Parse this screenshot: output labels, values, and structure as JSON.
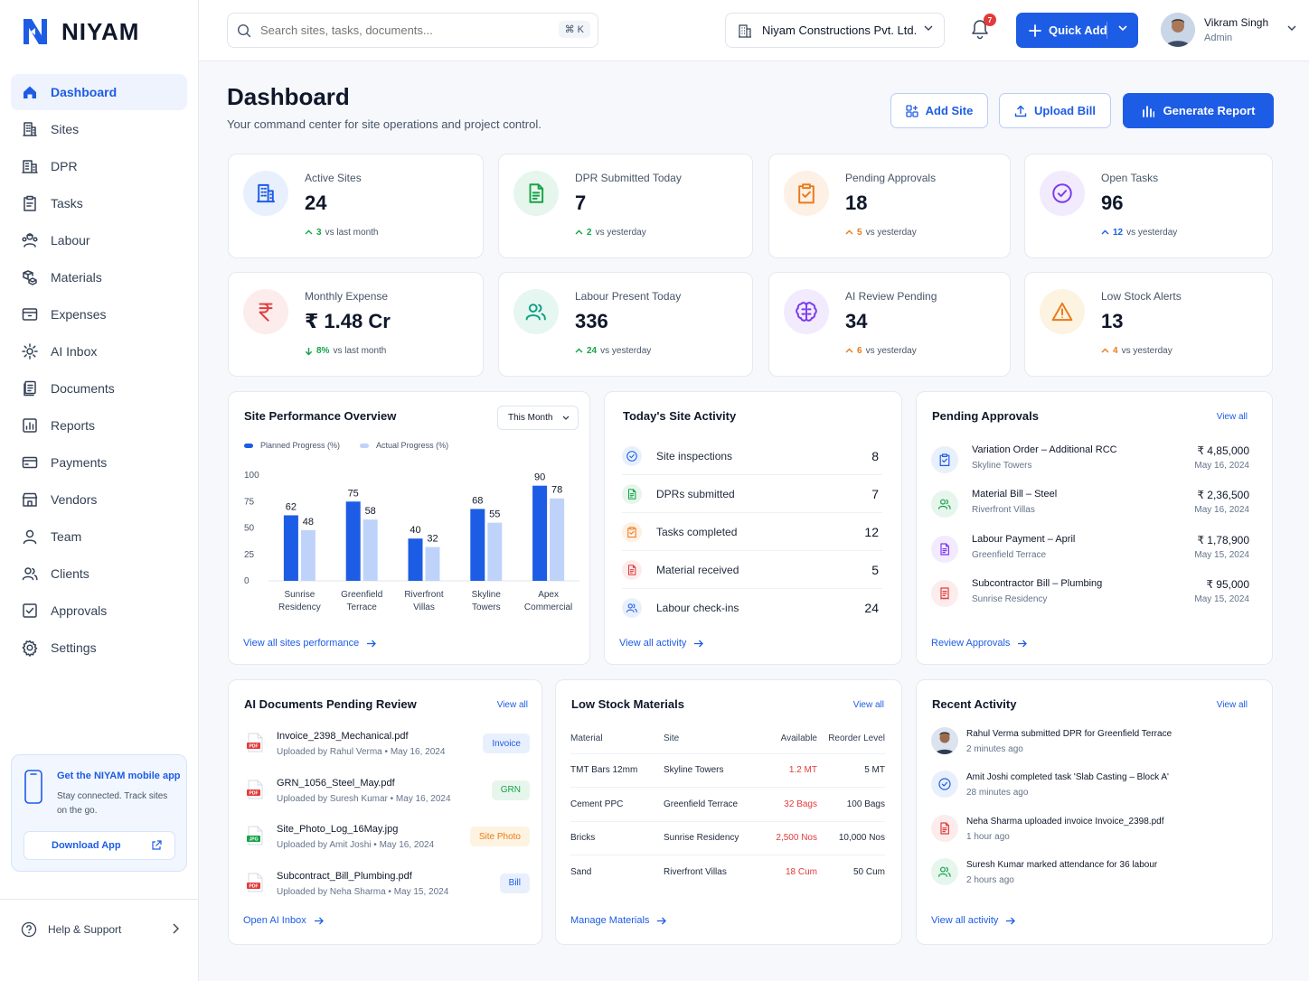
{
  "app": {
    "name": "NIYAM"
  },
  "sidebar": {
    "items": [
      {
        "label": "Dashboard",
        "icon": "home-icon",
        "active": true
      },
      {
        "label": "Sites",
        "icon": "building-icon"
      },
      {
        "label": "DPR",
        "icon": "dpr-icon"
      },
      {
        "label": "Tasks",
        "icon": "clipboard-icon"
      },
      {
        "label": "Labour",
        "icon": "labour-icon"
      },
      {
        "label": "Materials",
        "icon": "materials-icon"
      },
      {
        "label": "Expenses",
        "icon": "wallet-icon"
      },
      {
        "label": "AI Inbox",
        "icon": "ai-gear-icon"
      },
      {
        "label": "Documents",
        "icon": "documents-icon"
      },
      {
        "label": "Reports",
        "icon": "reports-icon"
      },
      {
        "label": "Payments",
        "icon": "card-icon"
      },
      {
        "label": "Vendors",
        "icon": "store-icon"
      },
      {
        "label": "Team",
        "icon": "user-icon"
      },
      {
        "label": "Clients",
        "icon": "clients-icon"
      },
      {
        "label": "Approvals",
        "icon": "check-square-icon"
      },
      {
        "label": "Settings",
        "icon": "gear-icon"
      }
    ],
    "promo": {
      "title": "Get the NIYAM mobile app",
      "text": "Stay connected. Track sites on the go.",
      "button": "Download App"
    },
    "help": "Help & Support"
  },
  "topbar": {
    "search_placeholder": "Search sites, tasks, documents...",
    "shortcut": "⌘ K",
    "company": "Niyam Constructions Pvt. Ltd.",
    "notifications": "7",
    "quick_add": "Quick Add",
    "user_name": "Vikram Singh",
    "user_role": "Admin"
  },
  "header": {
    "title": "Dashboard",
    "subtitle": "Your command center for site operations and project control.",
    "add_site": "Add Site",
    "upload_bill": "Upload Bill",
    "generate_report": "Generate Report"
  },
  "stats": [
    {
      "label": "Active Sites",
      "value": "24",
      "delta": "3",
      "note": "vs last month",
      "direction": "up",
      "color": "#16a34a",
      "bg": "#e8f0fd",
      "icon": "building-icon"
    },
    {
      "label": "DPR Submitted Today",
      "value": "7",
      "delta": "2",
      "note": "vs yesterday",
      "direction": "up",
      "color": "#16a34a",
      "bg": "#e7f6ec",
      "icon": "document-icon"
    },
    {
      "label": "Pending Approvals",
      "value": "18",
      "delta": "5",
      "note": "vs yesterday",
      "direction": "up",
      "color": "#ea7a1a",
      "bg": "#fdf0e4",
      "icon": "clipboard-check-icon"
    },
    {
      "label": "Open Tasks",
      "value": "96",
      "delta": "12",
      "note": "vs yesterday",
      "direction": "up",
      "color": "#1d5ce5",
      "bg": "#f1ebfd",
      "icon": "check-circle-icon"
    },
    {
      "label": "Monthly Expense",
      "value": "₹ 1.48 Cr",
      "delta": "8%",
      "note": "vs last month",
      "direction": "down",
      "color": "#16a34a",
      "bg": "#fdecec",
      "icon": "rupee-icon"
    },
    {
      "label": "Labour Present Today",
      "value": "336",
      "delta": "24",
      "note": "vs yesterday",
      "direction": "up",
      "color": "#16a34a",
      "bg": "#e6f6f1",
      "icon": "users-icon"
    },
    {
      "label": "AI Review Pending",
      "value": "34",
      "delta": "6",
      "note": "vs yesterday",
      "direction": "up",
      "color": "#ea7a1a",
      "bg": "#f1ebfd",
      "icon": "brain-icon"
    },
    {
      "label": "Low Stock Alerts",
      "value": "13",
      "delta": "4",
      "note": "vs yesterday",
      "direction": "up",
      "color": "#ea7a1a",
      "bg": "#fdf3e1",
      "icon": "warning-icon"
    }
  ],
  "performance": {
    "title": "Site Performance Overview",
    "period": "This Month",
    "link": "View all sites performance"
  },
  "chart_data": {
    "type": "bar",
    "categories": [
      [
        "Sunrise",
        "Residency"
      ],
      [
        "Greenfield",
        "Terrace"
      ],
      [
        "Riverfront",
        "Villas"
      ],
      [
        "Skyline",
        "Towers"
      ],
      [
        "Apex",
        "Commercial"
      ]
    ],
    "series": [
      {
        "name": "Planned Progress (%)",
        "values": [
          62,
          75,
          40,
          68,
          90
        ],
        "color": "#1d5ce5"
      },
      {
        "name": "Actual Progress (%)",
        "values": [
          48,
          58,
          32,
          55,
          78
        ],
        "color": "#bfd3fa"
      }
    ],
    "yticks": [
      0,
      25,
      50,
      75,
      100
    ],
    "ylim": [
      0,
      100
    ],
    "legend": "top-left"
  },
  "activity": {
    "title": "Today's Site Activity",
    "link": "View all activity",
    "rows": [
      {
        "label": "Site inspections",
        "value": "8",
        "color": "#1d5ce5",
        "bg": "#e8f0fd",
        "icon": "check-circle-icon"
      },
      {
        "label": "DPRs submitted",
        "value": "7",
        "color": "#16a34a",
        "bg": "#e7f6ec",
        "icon": "document-icon"
      },
      {
        "label": "Tasks completed",
        "value": "12",
        "color": "#ea7a1a",
        "bg": "#fdf0e4",
        "icon": "clipboard-check-icon"
      },
      {
        "label": "Material received",
        "value": "5",
        "color": "#e23b3b",
        "bg": "#fdecec",
        "icon": "document-icon"
      },
      {
        "label": "Labour check-ins",
        "value": "24",
        "color": "#1d5ce5",
        "bg": "#e8f0fd",
        "icon": "users-icon"
      }
    ]
  },
  "approvals": {
    "title": "Pending Approvals",
    "view_all": "View all",
    "link": "Review Approvals",
    "rows": [
      {
        "title": "Variation Order – Additional RCC",
        "site": "Skyline Towers",
        "amount": "₹ 4,85,000",
        "date": "May 16, 2024",
        "color": "#1d5ce5",
        "bg": "#e8f0fd",
        "icon": "clipboard-check-icon"
      },
      {
        "title": "Material Bill – Steel",
        "site": "Riverfront Villas",
        "amount": "₹ 2,36,500",
        "date": "May 16, 2024",
        "color": "#16a34a",
        "bg": "#e7f6ec",
        "icon": "users-icon"
      },
      {
        "title": "Labour Payment – April",
        "site": "Greenfield Terrace",
        "amount": "₹ 1,78,900",
        "date": "May 15, 2024",
        "color": "#7c3aed",
        "bg": "#f1ebfd",
        "icon": "document-icon"
      },
      {
        "title": "Subcontractor Bill – Plumbing",
        "site": "Sunrise Residency",
        "amount": "₹ 95,000",
        "date": "May 15, 2024",
        "color": "#e23b3b",
        "bg": "#fdecec",
        "icon": "receipt-icon"
      }
    ]
  },
  "ai_docs": {
    "title": "AI Documents Pending Review",
    "view_all": "View all",
    "link": "Open AI Inbox",
    "rows": [
      {
        "name": "Invoice_2398_Mechanical.pdf",
        "by": "Uploaded by Rahul Verma",
        "date": "May 16, 2024",
        "tag": "Invoice",
        "file": "PDF",
        "tag_bg": "#e8f0fd",
        "tag_color": "#1d5ce5",
        "file_color": "#e23b3b"
      },
      {
        "name": "GRN_1056_Steel_May.pdf",
        "by": "Uploaded by Suresh Kumar",
        "date": "May 16, 2024",
        "tag": "GRN",
        "file": "PDF",
        "tag_bg": "#e7f6ec",
        "tag_color": "#16a34a",
        "file_color": "#e23b3b"
      },
      {
        "name": "Site_Photo_Log_16May.jpg",
        "by": "Uploaded by Amit Joshi",
        "date": "May 16, 2024",
        "tag": "Site Photo",
        "file": "JPG",
        "tag_bg": "#fdf3e1",
        "tag_color": "#ea7a1a",
        "file_color": "#16a34a"
      },
      {
        "name": "Subcontract_Bill_Plumbing.pdf",
        "by": "Uploaded by Neha Sharma",
        "date": "May 15, 2024",
        "tag": "Bill",
        "file": "PDF",
        "tag_bg": "#e8f0fd",
        "tag_color": "#1d5ce5",
        "file_color": "#e23b3b"
      }
    ]
  },
  "low_stock": {
    "title": "Low Stock Materials",
    "view_all": "View all",
    "link": "Manage Materials",
    "columns": [
      "Material",
      "Site",
      "Available",
      "Reorder Level"
    ],
    "rows": [
      [
        "TMT Bars 12mm",
        "Skyline Towers",
        "1.2 MT",
        "5 MT"
      ],
      [
        "Cement PPC",
        "Greenfield Terrace",
        "32 Bags",
        "100 Bags"
      ],
      [
        "Bricks",
        "Sunrise Residency",
        "2,500 Nos",
        "10,000 Nos"
      ],
      [
        "Sand",
        "Riverfront Villas",
        "18 Cum",
        "50 Cum"
      ]
    ]
  },
  "recent": {
    "title": "Recent Activity",
    "view_all": "View all",
    "link": "View all activity",
    "rows": [
      {
        "text": "Rahul Verma submitted DPR for Greenfield Terrace",
        "time": "2 minutes ago",
        "kind": "avatar"
      },
      {
        "text": "Amit Joshi completed task 'Slab Casting – Block A'",
        "time": "28 minutes ago",
        "kind": "check-circle-icon",
        "color": "#1d5ce5",
        "bg": "#e8f0fd"
      },
      {
        "text": "Neha Sharma uploaded invoice Invoice_2398.pdf",
        "time": "1 hour ago",
        "kind": "document-icon",
        "color": "#e23b3b",
        "bg": "#fdecec"
      },
      {
        "text": "Suresh Kumar marked attendance for 36 labour",
        "time": "2 hours ago",
        "kind": "users-icon",
        "color": "#16a34a",
        "bg": "#e7f6ec"
      }
    ]
  }
}
